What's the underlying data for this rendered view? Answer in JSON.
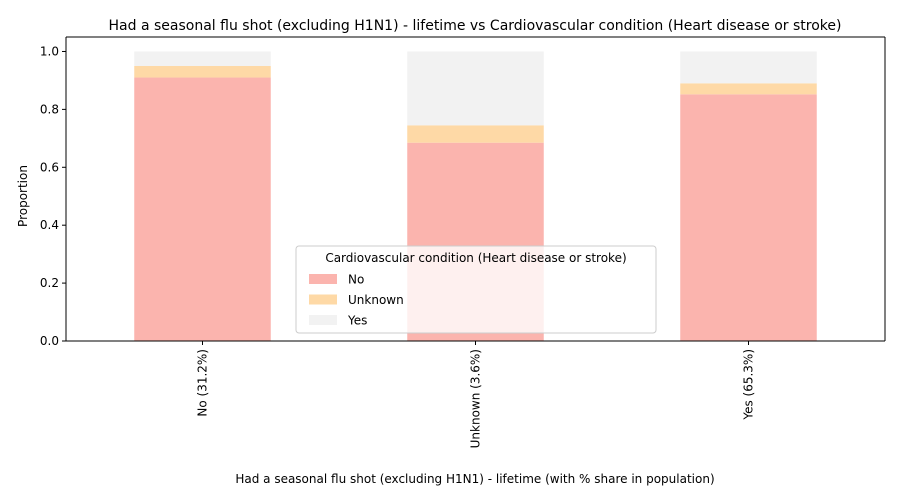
{
  "chart_data": {
    "type": "bar",
    "stacked": true,
    "title": "Had a seasonal flu shot (excluding H1N1) - lifetime vs Cardiovascular condition (Heart disease or stroke)",
    "xlabel": "Had a seasonal flu shot (excluding H1N1) - lifetime (with % share in population)",
    "ylabel": "Proportion",
    "categories": [
      "No (31.2%)",
      "Unknown (3.6%)",
      "Yes (65.3%)"
    ],
    "ylim": [
      0,
      1.05
    ],
    "yticks": [
      "0.0",
      "0.2",
      "0.4",
      "0.6",
      "0.8",
      "1.0"
    ],
    "series": [
      {
        "name": "No",
        "values": [
          0.91,
          0.685,
          0.852
        ],
        "color": "#fbb4ae"
      },
      {
        "name": "Unknown",
        "values": [
          0.04,
          0.06,
          0.038
        ],
        "color": "#fed9a6"
      },
      {
        "name": "Yes",
        "values": [
          0.05,
          0.255,
          0.11
        ],
        "color": "#f2f2f2"
      }
    ],
    "legend": {
      "title": "Cardiovascular condition (Heart disease or stroke)",
      "placement": "lower center"
    },
    "grid": false
  }
}
